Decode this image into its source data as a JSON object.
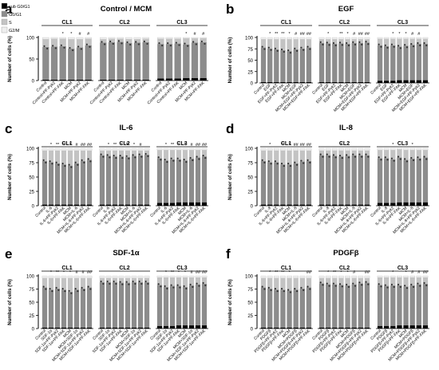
{
  "legend": {
    "items": [
      {
        "label": "sub G0/G1",
        "color": "#000000"
      },
      {
        "label": "G0/G1",
        "color": "#8c8c8c"
      },
      {
        "label": "S",
        "color": "#c3c3c3"
      },
      {
        "label": "G2/M",
        "color": "#eeeeee"
      }
    ]
  },
  "chart_data": [
    {
      "type": "bar",
      "stacked": true,
      "letter": "a",
      "title": "Control / MCM",
      "ylabel": "Number of cells (%)",
      "ylim": [
        0,
        100
      ],
      "yticks": [
        0,
        50,
        100
      ],
      "groups": [
        {
          "name": "CL1",
          "categories": [
            "Control",
            "Control+PF-Pyk2",
            "Control+PF-FAK",
            "MCM",
            "MCM+PF-Pyk2",
            "MCM+PF-FAK"
          ],
          "sig": [
            "",
            "",
            "*",
            "*",
            "#",
            "#"
          ],
          "sub_g0g1": [
            2,
            2,
            2,
            2,
            2,
            2
          ],
          "g0g1": [
            76,
            77,
            78,
            72,
            75,
            80
          ],
          "s": [
            18,
            18,
            17,
            22,
            19,
            15
          ]
        },
        {
          "name": "CL2",
          "categories": [
            "Control",
            "Control+PF-Pyk2",
            "Control+PF-FAK",
            "MCM",
            "MCM+PF-Pyk2",
            "MCM+PF-FAK"
          ],
          "sig": [
            "",
            "",
            "",
            "",
            "",
            ""
          ],
          "sub_g0g1": [
            2,
            2,
            2,
            2,
            2,
            2
          ],
          "g0g1": [
            86,
            87,
            88,
            85,
            86,
            87
          ],
          "s": [
            8,
            8,
            7,
            9,
            8,
            8
          ]
        },
        {
          "name": "CL3",
          "categories": [
            "Control",
            "Control+PF-Pyk2",
            "Control+PF-FAK",
            "MCM",
            "MCM+PF-Pyk2",
            "MCM+PF-FAK"
          ],
          "sig": [
            "",
            "",
            "",
            "*",
            "#",
            "#"
          ],
          "sub_g0g1": [
            5,
            5,
            5,
            6,
            6,
            6
          ],
          "g0g1": [
            80,
            80,
            81,
            78,
            82,
            83
          ],
          "s": [
            12,
            12,
            11,
            14,
            10,
            9
          ]
        }
      ]
    },
    {
      "type": "bar",
      "stacked": true,
      "letter": "b",
      "title": "EGF",
      "ylabel": "Number of cells (%)",
      "ylim": [
        0,
        100
      ],
      "yticks": [
        0,
        25,
        50,
        75,
        100
      ],
      "groups": [
        {
          "name": "CL1",
          "categories": [
            "Control",
            "EGF",
            "EGF+PF-Pyk2",
            "EGF+PF-FAK",
            "MCM",
            "MCM+EGF",
            "MCM+EGF+PF-Pyk2",
            "MCM+EGF+PF-FAK"
          ],
          "sig": [
            "",
            "*",
            "**",
            "**",
            "*",
            "#",
            "##",
            "##"
          ],
          "sub_g0g1": [
            2,
            2,
            2,
            2,
            2,
            2,
            2,
            2
          ],
          "g0g1": [
            76,
            74,
            72,
            70,
            68,
            72,
            74,
            76
          ],
          "s": [
            18,
            20,
            22,
            24,
            26,
            22,
            20,
            18
          ]
        },
        {
          "name": "CL2",
          "categories": [
            "Control",
            "EGF",
            "EGF+PF-Pyk2",
            "EGF+PF-FAK",
            "MCM",
            "MCM+EGF",
            "MCM+EGF+PF-Pyk2",
            "MCM+EGF+PF-FAK"
          ],
          "sig": [
            "",
            "*",
            "",
            "**",
            "*",
            "#",
            "##",
            "##"
          ],
          "sub_g0g1": [
            2,
            2,
            2,
            2,
            2,
            2,
            2,
            2
          ],
          "g0g1": [
            86,
            85,
            84,
            85,
            84,
            86,
            86,
            87
          ],
          "s": [
            8,
            9,
            10,
            9,
            10,
            8,
            8,
            7
          ]
        },
        {
          "name": "CL3",
          "categories": [
            "Control",
            "EGF",
            "EGF+PF-Pyk2",
            "EGF+PF-FAK",
            "MCM",
            "MCM+EGF",
            "MCM+EGF+PF-Pyk2",
            "MCM+EGF+PF-FAK"
          ],
          "sig": [
            "",
            "",
            "*",
            "*",
            "*",
            "#",
            "#",
            ""
          ],
          "sub_g0g1": [
            5,
            5,
            5,
            6,
            6,
            6,
            6,
            6
          ],
          "g0g1": [
            78,
            76,
            78,
            74,
            76,
            78,
            80,
            80
          ],
          "s": [
            14,
            16,
            14,
            17,
            15,
            13,
            11,
            11
          ]
        }
      ]
    },
    {
      "type": "bar",
      "stacked": true,
      "letter": "c",
      "title": "IL-6",
      "ylabel": "Number of cells (%)",
      "ylim": [
        0,
        100
      ],
      "yticks": [
        0,
        25,
        50,
        75,
        100
      ],
      "groups": [
        {
          "name": "CL1",
          "categories": [
            "Control",
            "IL-6",
            "IL-6+PF-Pyk2",
            "IL-6+PF-FAK",
            "MCM",
            "MCM+IL-6",
            "MCM+IL-6+PF-Pyk2",
            "MCM+IL-6+PF-FAK"
          ],
          "sig": [
            "",
            "*",
            "**",
            "**",
            "*",
            "#",
            "##",
            "##"
          ],
          "sub_g0g1": [
            2,
            2,
            2,
            2,
            2,
            2,
            2,
            2
          ],
          "g0g1": [
            76,
            74,
            72,
            70,
            68,
            72,
            76,
            78
          ],
          "s": [
            18,
            20,
            22,
            24,
            26,
            22,
            18,
            16
          ]
        },
        {
          "name": "CL2",
          "categories": [
            "Control",
            "IL-6",
            "IL-6+PF-Pyk2",
            "IL-6+PF-FAK",
            "MCM",
            "MCM+IL-6",
            "MCM+IL-6+PF-Pyk2",
            "MCM+IL-6+PF-FAK"
          ],
          "sig": [
            "",
            "*",
            "**",
            "*",
            "**",
            "*",
            "#",
            ""
          ],
          "sub_g0g1": [
            2,
            2,
            2,
            2,
            2,
            2,
            2,
            2
          ],
          "g0g1": [
            86,
            85,
            84,
            84,
            83,
            85,
            86,
            87
          ],
          "s": [
            8,
            9,
            10,
            10,
            11,
            9,
            8,
            7
          ]
        },
        {
          "name": "CL3",
          "categories": [
            "Control",
            "IL-6",
            "IL-6+PF-Pyk2",
            "IL-6+PF-FAK",
            "MCM",
            "MCM+IL-6",
            "MCM+IL-6+PF-Pyk2",
            "MCM+IL-6+PF-FAK"
          ],
          "sig": [
            "",
            "*",
            "**",
            "*",
            "*",
            "#",
            "##",
            "##"
          ],
          "sub_g0g1": [
            5,
            5,
            5,
            6,
            6,
            6,
            6,
            6
          ],
          "g0g1": [
            78,
            74,
            76,
            75,
            73,
            76,
            78,
            80
          ],
          "s": [
            14,
            18,
            16,
            16,
            18,
            15,
            13,
            11
          ]
        }
      ]
    },
    {
      "type": "bar",
      "stacked": true,
      "letter": "d",
      "title": "IL-8",
      "ylabel": "Number of cells (%)",
      "ylim": [
        0,
        100
      ],
      "yticks": [
        0,
        25,
        50,
        75,
        100
      ],
      "groups": [
        {
          "name": "CL1",
          "categories": [
            "Control",
            "IL-8",
            "IL-8+PF-Pyk2",
            "IL-8+PF-FAK",
            "MCM",
            "MCM+IL-8",
            "MCM+IL-8+PF-Pyk2",
            "MCM+IL-8+PF-FAK"
          ],
          "sig": [
            "",
            "*",
            "",
            "**",
            "*",
            "##",
            "##",
            "##"
          ],
          "sub_g0g1": [
            2,
            2,
            2,
            2,
            2,
            2,
            2,
            2
          ],
          "g0g1": [
            76,
            74,
            74,
            70,
            70,
            72,
            75,
            76
          ],
          "s": [
            18,
            20,
            20,
            24,
            24,
            22,
            19,
            18
          ]
        },
        {
          "name": "CL2",
          "categories": [
            "Control",
            "IL-8",
            "IL-8+PF-Pyk2",
            "IL-8+PF-FAK",
            "MCM",
            "MCM+IL-8",
            "MCM+IL-8+PF-Pyk2",
            "MCM+IL-8+PF-FAK"
          ],
          "sig": [
            "",
            "",
            "",
            "*",
            "",
            "",
            "",
            ""
          ],
          "sub_g0g1": [
            2,
            2,
            2,
            2,
            2,
            2,
            2,
            2
          ],
          "g0g1": [
            86,
            86,
            85,
            84,
            85,
            86,
            86,
            86
          ],
          "s": [
            8,
            8,
            9,
            10,
            9,
            8,
            8,
            8
          ]
        },
        {
          "name": "CL3",
          "categories": [
            "Control",
            "IL-8",
            "IL-8+PF-Pyk2",
            "IL-8+PF-FAK",
            "MCM",
            "MCM+IL-8",
            "MCM+IL-8+PF-Pyk2",
            "MCM+IL-8+PF-FAK"
          ],
          "sig": [
            "",
            "",
            "*",
            "",
            "",
            "*",
            "",
            ""
          ],
          "sub_g0g1": [
            5,
            5,
            5,
            6,
            6,
            6,
            6,
            6
          ],
          "g0g1": [
            78,
            78,
            76,
            78,
            74,
            76,
            77,
            78
          ],
          "s": [
            14,
            14,
            16,
            14,
            17,
            15,
            14,
            13
          ]
        }
      ]
    },
    {
      "type": "bar",
      "stacked": true,
      "letter": "e",
      "title": "SDF-1α",
      "ylabel": "Number of cells (%)",
      "ylim": [
        0,
        100
      ],
      "yticks": [
        0,
        25,
        50,
        75,
        100
      ],
      "groups": [
        {
          "name": "CL1",
          "categories": [
            "Control",
            "SDF-1α",
            "SDF-1α+PF-Pyk2",
            "SDF-1α+PF-FAK",
            "MCM",
            "MCM+SDF-1α",
            "MCM+SDF-1α+PF-Pyk2",
            "MCM+SDF-1α+PF-FAK"
          ],
          "sig": [
            "",
            "*",
            "**",
            "*",
            "*",
            "#",
            "#",
            "##"
          ],
          "sub_g0g1": [
            2,
            2,
            2,
            2,
            2,
            2,
            2,
            2
          ],
          "g0g1": [
            76,
            72,
            74,
            72,
            68,
            72,
            74,
            76
          ],
          "s": [
            18,
            22,
            20,
            22,
            26,
            22,
            20,
            18
          ]
        },
        {
          "name": "CL2",
          "categories": [
            "Control",
            "SDF-1α",
            "SDF-1α+PF-Pyk2",
            "SDF-1α+PF-FAK",
            "MCM",
            "MCM+SDF-1α",
            "MCM+SDF-1α+PF-Pyk2",
            "MCM+SDF-1α+PF-FAK"
          ],
          "sig": [
            "",
            "",
            "",
            "",
            "",
            "",
            "",
            ""
          ],
          "sub_g0g1": [
            2,
            2,
            2,
            2,
            2,
            2,
            2,
            2
          ],
          "g0g1": [
            86,
            86,
            86,
            85,
            85,
            86,
            86,
            86
          ],
          "s": [
            8,
            8,
            8,
            9,
            9,
            8,
            8,
            8
          ]
        },
        {
          "name": "CL3",
          "categories": [
            "Control",
            "SDF-1α",
            "SDF-1α+PF-Pyk2",
            "SDF-1α+PF-FAK",
            "MCM",
            "MCM+SDF-1α",
            "MCM+SDF-1α+PF-Pyk2",
            "MCM+SDF-1α+PF-FAK"
          ],
          "sig": [
            "",
            "*",
            "**",
            "*",
            "*",
            "#",
            "##",
            "##"
          ],
          "sub_g0g1": [
            5,
            5,
            5,
            6,
            6,
            6,
            6,
            6
          ],
          "g0g1": [
            78,
            74,
            76,
            75,
            73,
            76,
            78,
            79
          ],
          "s": [
            14,
            18,
            16,
            16,
            18,
            15,
            13,
            12
          ]
        }
      ]
    },
    {
      "type": "bar",
      "stacked": true,
      "letter": "f",
      "title": "PDGFβ",
      "ylabel": "Number of cells (%)",
      "ylim": [
        0,
        100
      ],
      "yticks": [
        0,
        25,
        50,
        75,
        100
      ],
      "groups": [
        {
          "name": "CL1",
          "categories": [
            "Control",
            "PDGFβ",
            "PDGFβ+PF-Pyk2",
            "PDGFβ+PF-FAK",
            "MCM",
            "MCM+PDGFβ",
            "MCM+PDGFβ+PF-Pyk2",
            "MCM+PDGFβ+PF-FAK"
          ],
          "sig": [
            "",
            "*",
            "**",
            "**",
            "*",
            "",
            "",
            "##"
          ],
          "sub_g0g1": [
            2,
            2,
            2,
            2,
            2,
            2,
            2,
            2
          ],
          "g0g1": [
            76,
            74,
            72,
            72,
            70,
            72,
            74,
            76
          ],
          "s": [
            18,
            20,
            22,
            22,
            24,
            22,
            20,
            18
          ]
        },
        {
          "name": "CL2",
          "categories": [
            "Control",
            "PDGFβ",
            "PDGFβ+PF-Pyk2",
            "PDGFβ+PF-FAK",
            "MCM",
            "MCM+PDGFβ",
            "MCM+PDGFβ+PF-Pyk2",
            "MCM+PDGFβ+PF-FAK"
          ],
          "sig": [
            "",
            "*",
            "**",
            "*",
            "*",
            "#",
            "",
            "##"
          ],
          "sub_g0g1": [
            2,
            2,
            2,
            2,
            2,
            2,
            2,
            2
          ],
          "g0g1": [
            84,
            82,
            82,
            81,
            80,
            82,
            84,
            85
          ],
          "s": [
            10,
            12,
            12,
            13,
            14,
            12,
            10,
            9
          ]
        },
        {
          "name": "CL3",
          "categories": [
            "Control",
            "PDGFβ",
            "PDGFβ+PF-Pyk2",
            "PDGFβ+PF-FAK",
            "MCM",
            "MCM+PDGFβ",
            "MCM+PDGFβ+PF-Pyk2",
            "MCM+PDGFβ+PF-FAK"
          ],
          "sig": [
            "",
            "",
            "*",
            "",
            "*",
            "#",
            "#",
            "##"
          ],
          "sub_g0g1": [
            5,
            5,
            5,
            6,
            6,
            6,
            6,
            6
          ],
          "g0g1": [
            78,
            76,
            77,
            76,
            74,
            76,
            78,
            79
          ],
          "s": [
            14,
            16,
            15,
            15,
            17,
            15,
            13,
            12
          ]
        }
      ]
    }
  ]
}
